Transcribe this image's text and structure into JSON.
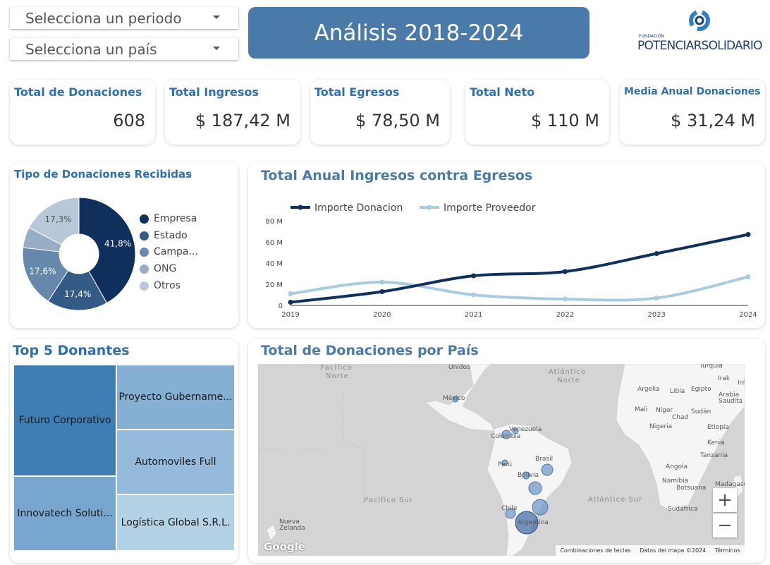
{
  "filters": {
    "period_label": "Selecciona un periodo",
    "country_label": "Selecciona un país"
  },
  "header": {
    "title": "Análisis 2018-2024",
    "logo_small": "FUNDACIÓN",
    "logo_name": "POTENCIARSOLIDARIO"
  },
  "kpis": [
    {
      "label": "Total de Donaciones",
      "value": "608"
    },
    {
      "label": "Total Ingresos",
      "value": "$ 187,42 M"
    },
    {
      "label": "Total Egresos",
      "value": "$ 78,50 M"
    },
    {
      "label": "Total Neto",
      "value": "$ 110 M"
    },
    {
      "label": "Media Anual Donaciones",
      "value": "$ 31,24 M"
    }
  ],
  "colors": {
    "accent": "#2e6fb0",
    "title_bg": "#4a7aa8",
    "series_dark": "#0f2f5c",
    "series_light": "#a9cbe0"
  },
  "donut": {
    "title": "Tipo de Donaciones Recibidas",
    "legend": [
      "Empresa",
      "Estado",
      "Campa...",
      "ONG",
      "Otros"
    ],
    "slice_labels": [
      "41,8%",
      "17,4%",
      "17,6%",
      "17,3%"
    ]
  },
  "line": {
    "title": "Total Anual Ingresos contra Egresos",
    "y_ticks": [
      "0",
      "20 M",
      "40 M",
      "60 M",
      "80 M"
    ],
    "x_ticks": [
      "2019",
      "2020",
      "2021",
      "2022",
      "2023",
      "2024"
    ]
  },
  "treemap": {
    "title": "Top 5 Donantes",
    "items": [
      "Futuro Corporativo",
      "Innovatech Soluti...",
      "Proyecto Gubername...",
      "Automoviles Full",
      "Logística Global S.R.L."
    ]
  },
  "map": {
    "title": "Total de Donaciones por País",
    "oceans": [
      "Pacífico",
      "Norte",
      "Atlántico",
      "Norte",
      "Pacífico Sur",
      "Atlántico Sur"
    ],
    "places": [
      "Unidos",
      "México",
      "Venezuela",
      "Colombia",
      "Perú",
      "Brasil",
      "Bolivia",
      "Chile",
      "Argentina",
      "Argelia",
      "Libia",
      "Egipto",
      "Arabia Saudita",
      "Irak",
      "Irán",
      "Turquía",
      "Mali",
      "Níger",
      "Chad",
      "Sudán",
      "Nigeria",
      "Etiopía",
      "Kenia",
      "Tanzania",
      "Angola",
      "Namibia",
      "Botsuana",
      "Madagasc",
      "Sudáfrica",
      "Nueva Zelanda"
    ],
    "footer": [
      "Combinaciones de teclas",
      "Datos del mapa ©2024",
      "Términos"
    ],
    "brand": "Google",
    "zoom_in": "+",
    "zoom_out": "−"
  },
  "chart_data": [
    {
      "type": "pie",
      "title": "Tipo de Donaciones Recibidas",
      "categories": [
        "Empresa",
        "Estado",
        "Campa...",
        "ONG",
        "Otros"
      ],
      "values": [
        41.8,
        17.4,
        17.6,
        5.9,
        17.3
      ],
      "colors": [
        "#0f2f5c",
        "#345b86",
        "#6689ab",
        "#97adc5",
        "#b9c8d8"
      ],
      "legend": "right"
    },
    {
      "type": "line",
      "title": "Total Anual Ingresos contra Egresos",
      "x": [
        2019,
        2020,
        2021,
        2022,
        2023,
        2024
      ],
      "series": [
        {
          "name": "Importe Donacion",
          "values": [
            3,
            13,
            28,
            32,
            49,
            67
          ]
        },
        {
          "name": "Importe Proveedor",
          "values": [
            11,
            22,
            10,
            6,
            7,
            27
          ]
        }
      ],
      "ylim": [
        0,
        80
      ],
      "legend": "top-left",
      "grid": false
    },
    {
      "type": "treemap",
      "title": "Top 5 Donantes",
      "categories": [
        "Futuro Corporativo",
        "Innovatech Soluti...",
        "Proyecto Gubername...",
        "Automoviles Full",
        "Logística Global S.R.L."
      ],
      "values": [
        26,
        15,
        14,
        13,
        11
      ]
    }
  ]
}
